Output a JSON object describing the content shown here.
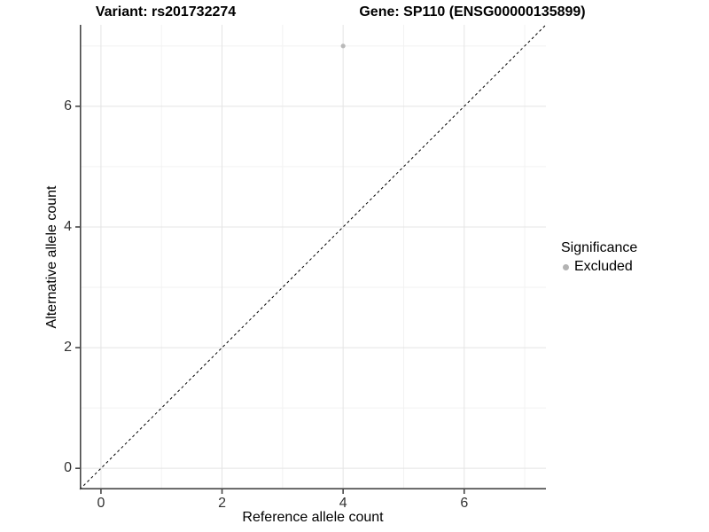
{
  "chart_data": {
    "type": "scatter",
    "titles": [
      {
        "text": "Variant: rs201732274"
      },
      {
        "text": "Gene: SP110 (ENSG00000135899)"
      }
    ],
    "xlabel": "Reference allele count",
    "ylabel": "Alternative allele count",
    "xlim": [
      -0.35,
      7.35
    ],
    "ylim": [
      -0.35,
      7.35
    ],
    "x_ticks": [
      0,
      2,
      4,
      6
    ],
    "y_ticks": [
      0,
      2,
      4,
      6
    ],
    "x_minor": [
      1,
      3,
      5,
      7
    ],
    "y_minor": [
      1,
      3,
      5,
      7
    ],
    "grid": true,
    "identity_line": {
      "equation": "y = x",
      "style": "dashed",
      "color": "#000000"
    },
    "series": [
      {
        "name": "Excluded",
        "color": "#b9b9b9",
        "points": [
          {
            "x": 4,
            "y": 7
          }
        ]
      }
    ],
    "legend": {
      "title": "Significance",
      "position": "right",
      "items": [
        {
          "label": "Excluded",
          "color": "#b3b3b3",
          "marker": "circle"
        }
      ]
    },
    "colors": {
      "grid_major": "#e4e4e4",
      "grid_minor": "#f2f2f2",
      "axis_line": "#474747",
      "tick_text": "#333333",
      "title_text": "#000000"
    }
  }
}
